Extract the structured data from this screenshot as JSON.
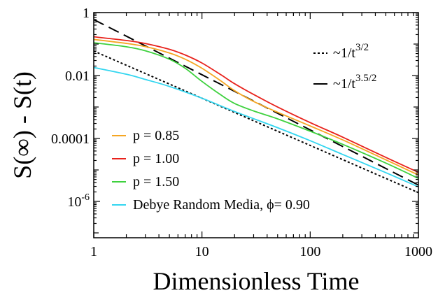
{
  "chart_data": {
    "type": "line",
    "title": "",
    "xlabel": "Dimensionless Time",
    "ylabel": "S(∞) - S(t)",
    "xscale": "log",
    "yscale": "log",
    "xlim": [
      1,
      1000
    ],
    "ylim": [
      7e-08,
      1
    ],
    "x_ticks": [
      {
        "value": 1,
        "label": "1"
      },
      {
        "value": 10,
        "label": "10"
      },
      {
        "value": 100,
        "label": "100"
      },
      {
        "value": 1000,
        "label": "1000"
      }
    ],
    "y_ticks": [
      {
        "value": 1,
        "label": "1"
      },
      {
        "value": 0.01,
        "label": "0.01"
      },
      {
        "value": 0.0001,
        "label": "0.0001"
      },
      {
        "value": 1e-06,
        "label": "10",
        "sup": "-6"
      }
    ],
    "grid": false,
    "legend_placement": "bottom-left",
    "series": [
      {
        "name": "p = 0.85",
        "color": "#f5a623",
        "x": [
          1,
          2,
          3,
          5,
          7,
          10,
          15,
          20,
          30,
          50,
          100,
          200,
          500,
          1000
        ],
        "y": [
          0.14,
          0.105,
          0.083,
          0.052,
          0.033,
          0.017,
          0.0067,
          0.0033,
          0.0015,
          0.00068,
          0.00025,
          9e-05,
          2.1e-05,
          6.9e-06
        ]
      },
      {
        "name": "p = 1.00",
        "color": "#e8221c",
        "x": [
          1,
          2,
          3,
          5,
          7,
          10,
          15,
          20,
          30,
          50,
          100,
          200,
          500,
          1000
        ],
        "y": [
          0.17,
          0.13,
          0.104,
          0.068,
          0.045,
          0.025,
          0.0105,
          0.0055,
          0.0025,
          0.001,
          0.00032,
          0.00011,
          2.5e-05,
          8.4e-06
        ]
      },
      {
        "name": "p = 1.50",
        "color": "#3ed13e",
        "x": [
          1,
          2,
          3,
          5,
          7,
          10,
          15,
          20,
          30,
          50,
          100,
          200,
          500,
          1000
        ],
        "y": [
          0.11,
          0.082,
          0.061,
          0.033,
          0.017,
          0.0065,
          0.0024,
          0.0013,
          0.00075,
          0.00042,
          0.00017,
          6.5e-05,
          1.65e-05,
          5.4e-06
        ]
      },
      {
        "name": "Debye Random Media, ϕ= 0.90",
        "color": "#33d6f0",
        "x": [
          1,
          2,
          3,
          5,
          10,
          20,
          50,
          100,
          200,
          500,
          1000
        ],
        "y": [
          0.018,
          0.011,
          0.0075,
          0.0045,
          0.0019,
          0.00072,
          0.00022,
          8.5e-05,
          3.1e-05,
          8.2e-06,
          2.9e-06
        ]
      }
    ],
    "reference_lines": [
      {
        "name": "~1/t",
        "sup": "3/2",
        "style": "dotted",
        "color": "#000000",
        "x": [
          1,
          1000
        ],
        "y": [
          0.06,
          1.9e-06
        ]
      },
      {
        "name": "~1/t",
        "sup": "3.5/2",
        "style": "dashed",
        "color": "#000000",
        "x": [
          1,
          1000
        ],
        "y": [
          0.6,
          3.3e-06
        ]
      }
    ]
  }
}
